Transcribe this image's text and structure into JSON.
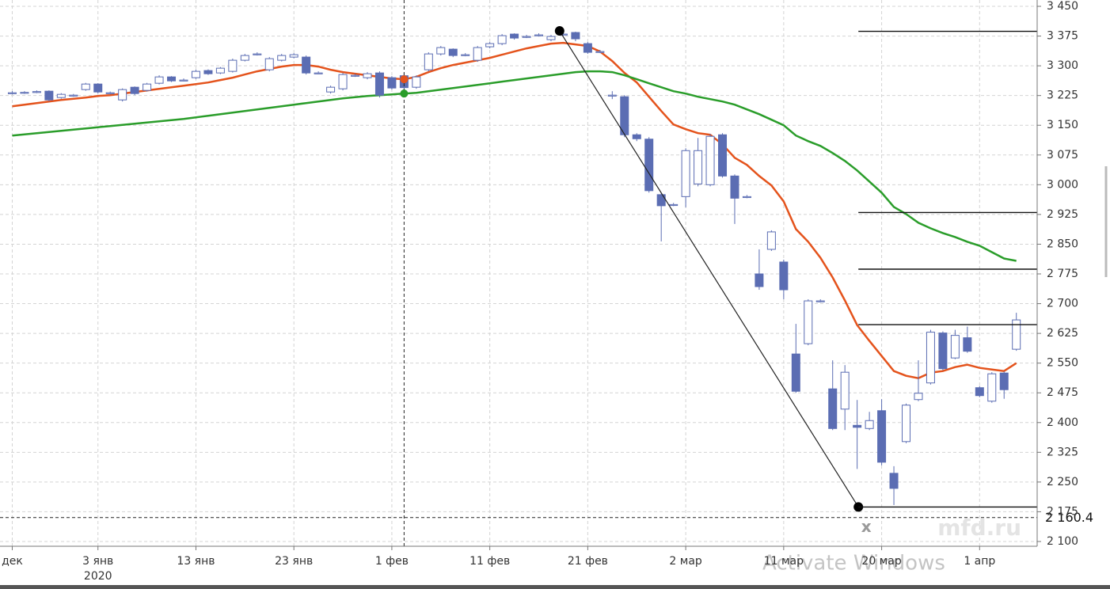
{
  "chart_data": {
    "type": "candlestick",
    "candles": {
      "color": "#5b6db3",
      "open": [
        3232,
        3233,
        3235,
        3236,
        3220,
        3226,
        3240,
        3254,
        3232,
        3214,
        3246,
        3238,
        3256,
        3272,
        3264,
        3270,
        3288,
        3282,
        3286,
        3314,
        3330,
        3290,
        3314,
        3322,
        3322,
        3282,
        3234,
        3242,
        3276,
        3270,
        3282,
        3270,
        3275,
        3246,
        3290,
        3330,
        3342,
        3328,
        3314,
        3348,
        3356,
        3380,
        3374,
        3378,
        3366,
        3380,
        3384,
        3356,
        3336,
        3226,
        3222,
        3126,
        3115,
        2975,
        2950,
        2970,
        3002,
        3000,
        3126,
        3022,
        2970,
        2775,
        2837,
        2805,
        2573,
        2599,
        2707,
        2485,
        2434,
        2393,
        2385,
        2430,
        2272,
        2352,
        2458,
        2500,
        2626,
        2563,
        2614,
        2488,
        2454,
        2525,
        2585
      ],
      "high": [
        3236,
        3236,
        3238,
        3238,
        3231,
        3229,
        3257,
        3256,
        3235,
        3243,
        3248,
        3257,
        3276,
        3274,
        3268,
        3290,
        3291,
        3297,
        3318,
        3330,
        3334,
        3322,
        3330,
        3332,
        3326,
        3286,
        3250,
        3282,
        3280,
        3284,
        3286,
        3274,
        3282,
        3276,
        3334,
        3350,
        3344,
        3332,
        3350,
        3360,
        3380,
        3382,
        3378,
        3382,
        3378,
        3388,
        3386,
        3360,
        3340,
        3236,
        3226,
        3130,
        3120,
        2980,
        2954,
        3092,
        3118,
        3128,
        3130,
        3026,
        2974,
        2837,
        2885,
        2811,
        2649,
        2711,
        2711,
        2557,
        2545,
        2457,
        2427,
        2459,
        2290,
        2448,
        2557,
        2634,
        2630,
        2634,
        2642,
        2492,
        2527,
        2529,
        2677
      ],
      "low": [
        3228,
        3229,
        3231,
        3210,
        3217,
        3222,
        3237,
        3230,
        3228,
        3210,
        3226,
        3235,
        3253,
        3259,
        3261,
        3267,
        3277,
        3279,
        3283,
        3311,
        3326,
        3286,
        3311,
        3319,
        3278,
        3279,
        3230,
        3238,
        3272,
        3266,
        3220,
        3240,
        3238,
        3242,
        3286,
        3326,
        3322,
        3324,
        3310,
        3344,
        3352,
        3366,
        3370,
        3374,
        3362,
        3376,
        3362,
        3330,
        3332,
        3216,
        3120,
        3110,
        2980,
        2857,
        2946,
        2943,
        2996,
        2996,
        3018,
        2901,
        2966,
        2735,
        2833,
        2711,
        2475,
        2595,
        2703,
        2381,
        2381,
        2283,
        2381,
        2292,
        2192,
        2348,
        2454,
        2496,
        2532,
        2560,
        2576,
        2464,
        2450,
        2460,
        2581
      ],
      "close": [
        3232,
        3233,
        3235,
        3214,
        3228,
        3226,
        3254,
        3234,
        3232,
        3240,
        3230,
        3254,
        3272,
        3262,
        3264,
        3286,
        3280,
        3294,
        3314,
        3326,
        3330,
        3318,
        3326,
        3328,
        3282,
        3282,
        3246,
        3278,
        3276,
        3280,
        3226,
        3244,
        3245,
        3272,
        3330,
        3346,
        3326,
        3328,
        3346,
        3356,
        3376,
        3370,
        3374,
        3378,
        3374,
        3380,
        3368,
        3334,
        3336,
        3226,
        3126,
        3116,
        2985,
        2947,
        2950,
        3086,
        3086,
        3122,
        3022,
        2966,
        2970,
        2743,
        2881,
        2735,
        2479,
        2707,
        2707,
        2385,
        2527,
        2388,
        2405,
        2300,
        2234,
        2444,
        2474,
        2628,
        2536,
        2620,
        2580,
        2468,
        2523,
        2483,
        2659
      ]
    },
    "moving_averages": [
      {
        "color": "#e4531c",
        "values": [
          3198,
          3202,
          3206,
          3210,
          3214,
          3217,
          3220,
          3224,
          3226,
          3230,
          3234,
          3238,
          3242,
          3246,
          3250,
          3254,
          3258,
          3264,
          3270,
          3278,
          3286,
          3292,
          3298,
          3302,
          3302,
          3298,
          3290,
          3284,
          3280,
          3276,
          3272,
          3268,
          3266,
          3272,
          3284,
          3294,
          3302,
          3308,
          3314,
          3320,
          3328,
          3336,
          3344,
          3350,
          3356,
          3358,
          3354,
          3350,
          3336,
          3312,
          3282,
          3258,
          3222,
          3186,
          3152,
          3140,
          3130,
          3126,
          3102,
          3068,
          3050,
          3022,
          2998,
          2958,
          2888,
          2856,
          2816,
          2766,
          2708,
          2646,
          2606,
          2568,
          2530,
          2518,
          2512,
          2526,
          2530,
          2540,
          2546,
          2538,
          2534,
          2530,
          2550
        ]
      },
      {
        "color": "#2a9d2a",
        "values": [
          3124,
          3127,
          3130,
          3133,
          3136,
          3139,
          3142,
          3145,
          3148,
          3151,
          3154,
          3157,
          3160,
          3163,
          3166,
          3170,
          3174,
          3178,
          3182,
          3186,
          3190,
          3194,
          3198,
          3202,
          3206,
          3210,
          3214,
          3218,
          3221,
          3224,
          3226,
          3228,
          3230,
          3232,
          3236,
          3240,
          3244,
          3248,
          3252,
          3256,
          3260,
          3264,
          3268,
          3272,
          3276,
          3280,
          3284,
          3286,
          3286,
          3284,
          3276,
          3266,
          3256,
          3246,
          3236,
          3230,
          3222,
          3216,
          3210,
          3202,
          3190,
          3178,
          3164,
          3150,
          3124,
          3110,
          3098,
          3080,
          3060,
          3036,
          3008,
          2980,
          2944,
          2926,
          2904,
          2890,
          2878,
          2868,
          2856,
          2846,
          2830,
          2814,
          2808
        ]
      }
    ],
    "trend_line": {
      "x": [
        44.7,
        69.1
      ],
      "y": [
        3388,
        2187
      ],
      "marker_label": "x"
    },
    "levels": [
      3387,
      2930,
      2787,
      2647,
      2187
    ],
    "crosshair": {
      "x": 32,
      "y": 2160.4,
      "label": "2 160.4"
    },
    "xlim": [
      -1.0,
      83.7
    ],
    "ylim": [
      2088,
      3466
    ],
    "xticks": [
      {
        "value": 0,
        "label": "дек"
      },
      {
        "value": 7,
        "label": "3 янв",
        "sublabel": "2020"
      },
      {
        "value": 15,
        "label": "13 янв"
      },
      {
        "value": 23,
        "label": "23 янв"
      },
      {
        "value": 31,
        "label": "1 фев"
      },
      {
        "value": 39,
        "label": "11 фев"
      },
      {
        "value": 47,
        "label": "21 фев"
      },
      {
        "value": 55,
        "label": "2 мар"
      },
      {
        "value": 63,
        "label": "11 мар"
      },
      {
        "value": 71,
        "label": "20 мар"
      },
      {
        "value": 79,
        "label": "1 апр"
      }
    ],
    "yticks": [
      {
        "value": 2100,
        "label": "2 100"
      },
      {
        "value": 2175,
        "label": "2 175"
      },
      {
        "value": 2250,
        "label": "2 250"
      },
      {
        "value": 2325,
        "label": "2 325"
      },
      {
        "value": 2400,
        "label": "2 400"
      },
      {
        "value": 2475,
        "label": "2 475"
      },
      {
        "value": 2550,
        "label": "2 550"
      },
      {
        "value": 2625,
        "label": "2 625"
      },
      {
        "value": 2700,
        "label": "2 700"
      },
      {
        "value": 2775,
        "label": "2 775"
      },
      {
        "value": 2850,
        "label": "2 850"
      },
      {
        "value": 2925,
        "label": "2 925"
      },
      {
        "value": 3000,
        "label": "3 000"
      },
      {
        "value": 3075,
        "label": "3 075"
      },
      {
        "value": 3150,
        "label": "3 150"
      },
      {
        "value": 3225,
        "label": "3 225"
      },
      {
        "value": 3300,
        "label": "3 300"
      },
      {
        "value": 3375,
        "label": "3 375"
      },
      {
        "value": 3450,
        "label": "3 450"
      }
    ],
    "grid": true,
    "watermark": "mfd.ru",
    "overlay_text": "Activate Windows"
  }
}
